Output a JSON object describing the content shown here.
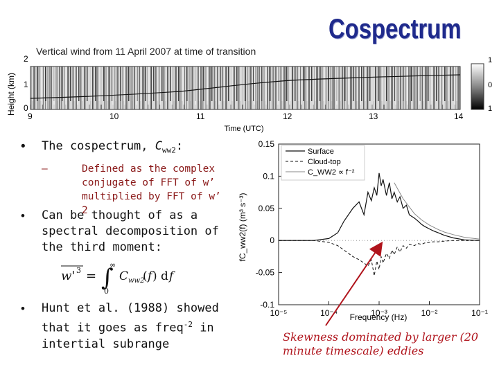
{
  "title": "Cospectrum",
  "top_figure": {
    "caption": "Vertical wind from 11 April 2007 at time of transition",
    "ylabel": "Height (km)",
    "yticks": [
      "0",
      "1",
      "2"
    ],
    "xlabel": "Time (UTC)",
    "xticks": [
      "9",
      "10",
      "11",
      "12",
      "13",
      "14"
    ],
    "colorbar_ticks": [
      "1",
      "0",
      "1"
    ]
  },
  "bullets": {
    "b1_text": "The cospectrum, ",
    "b1_symbol": "C",
    "b1_sub": "ww2",
    "b1_colon": ":",
    "b1_sub_item": "Defined as the complex conjugate of FFT of w’ multiplied by FFT of w’ 2",
    "b2_text": "Can be thought of as a spectral decomposition of the third moment:",
    "b3_text": "Hunt et al. (1988) showed that it goes as freq",
    "b3_sup": "-2",
    "b3_tail": " in intertial subrange"
  },
  "annotation": "Skewness dominated by larger (20 minute timescale) eddies",
  "chart_data": {
    "type": "line",
    "xscale": "log",
    "xlabel": "Frequency (Hz)",
    "ylabel": "fC_ww2(f) (m³ s⁻³)",
    "xlim": [
      1e-05,
      0.1
    ],
    "ylim": [
      -0.1,
      0.15
    ],
    "xticks": [
      "10⁻⁵",
      "10⁻⁴",
      "10⁻³",
      "10⁻²",
      "10⁻¹"
    ],
    "yticks": [
      "-0.1",
      "-0.05",
      "0",
      "0.05",
      "0.1",
      "0.15"
    ],
    "legend": [
      "Surface",
      "Cloud-top",
      "C_WW2 ∝ f⁻²"
    ],
    "legend_position": "top-left",
    "series": [
      {
        "name": "Surface",
        "x": [
          1e-05,
          5e-05,
          0.0001,
          0.00015,
          0.0002,
          0.0003,
          0.0004,
          0.0005,
          0.0006,
          0.0007,
          0.0008,
          0.0009,
          0.001,
          0.0011,
          0.0012,
          0.0014,
          0.0016,
          0.0018,
          0.002,
          0.0023,
          0.0026,
          0.003,
          0.0035,
          0.004,
          0.005,
          0.006,
          0.007,
          0.008,
          0.01,
          0.012,
          0.015,
          0.02,
          0.03,
          0.05,
          0.1
        ],
        "y": [
          0,
          0,
          0.003,
          0.012,
          0.03,
          0.05,
          0.06,
          0.04,
          0.075,
          0.062,
          0.082,
          0.07,
          0.105,
          0.085,
          0.095,
          0.07,
          0.09,
          0.065,
          0.075,
          0.06,
          0.068,
          0.05,
          0.055,
          0.04,
          0.035,
          0.03,
          0.025,
          0.022,
          0.018,
          0.015,
          0.012,
          0.008,
          0.004,
          0.001,
          0.0
        ]
      },
      {
        "name": "Cloud-top",
        "x": [
          1e-05,
          5e-05,
          0.0001,
          0.00015,
          0.0002,
          0.0003,
          0.0004,
          0.0005,
          0.0006,
          0.0007,
          0.0008,
          0.0009,
          0.001,
          0.0011,
          0.0012,
          0.0014,
          0.0016,
          0.0018,
          0.002,
          0.0023,
          0.0026,
          0.003,
          0.0035,
          0.004,
          0.005,
          0.006,
          0.007,
          0.008,
          0.01,
          0.012,
          0.015,
          0.02,
          0.03,
          0.05,
          0.1
        ],
        "y": [
          0,
          0,
          -0.003,
          -0.008,
          -0.015,
          -0.025,
          -0.03,
          -0.035,
          -0.04,
          -0.03,
          -0.055,
          -0.032,
          -0.045,
          -0.025,
          -0.035,
          -0.02,
          -0.028,
          -0.015,
          -0.022,
          -0.01,
          -0.018,
          -0.008,
          -0.012,
          -0.006,
          -0.008,
          -0.005,
          -0.006,
          -0.004,
          -0.003,
          -0.002,
          -0.002,
          -0.001,
          0.0,
          0.0,
          0.0
        ]
      },
      {
        "name": "C_WW2 ∝ f⁻²",
        "x": [
          0.002,
          0.003,
          0.005,
          0.007,
          0.01,
          0.015,
          0.02,
          0.03,
          0.05,
          0.1
        ],
        "y": [
          0.09,
          0.065,
          0.042,
          0.032,
          0.024,
          0.017,
          0.013,
          0.009,
          0.005,
          0.002
        ]
      }
    ]
  }
}
